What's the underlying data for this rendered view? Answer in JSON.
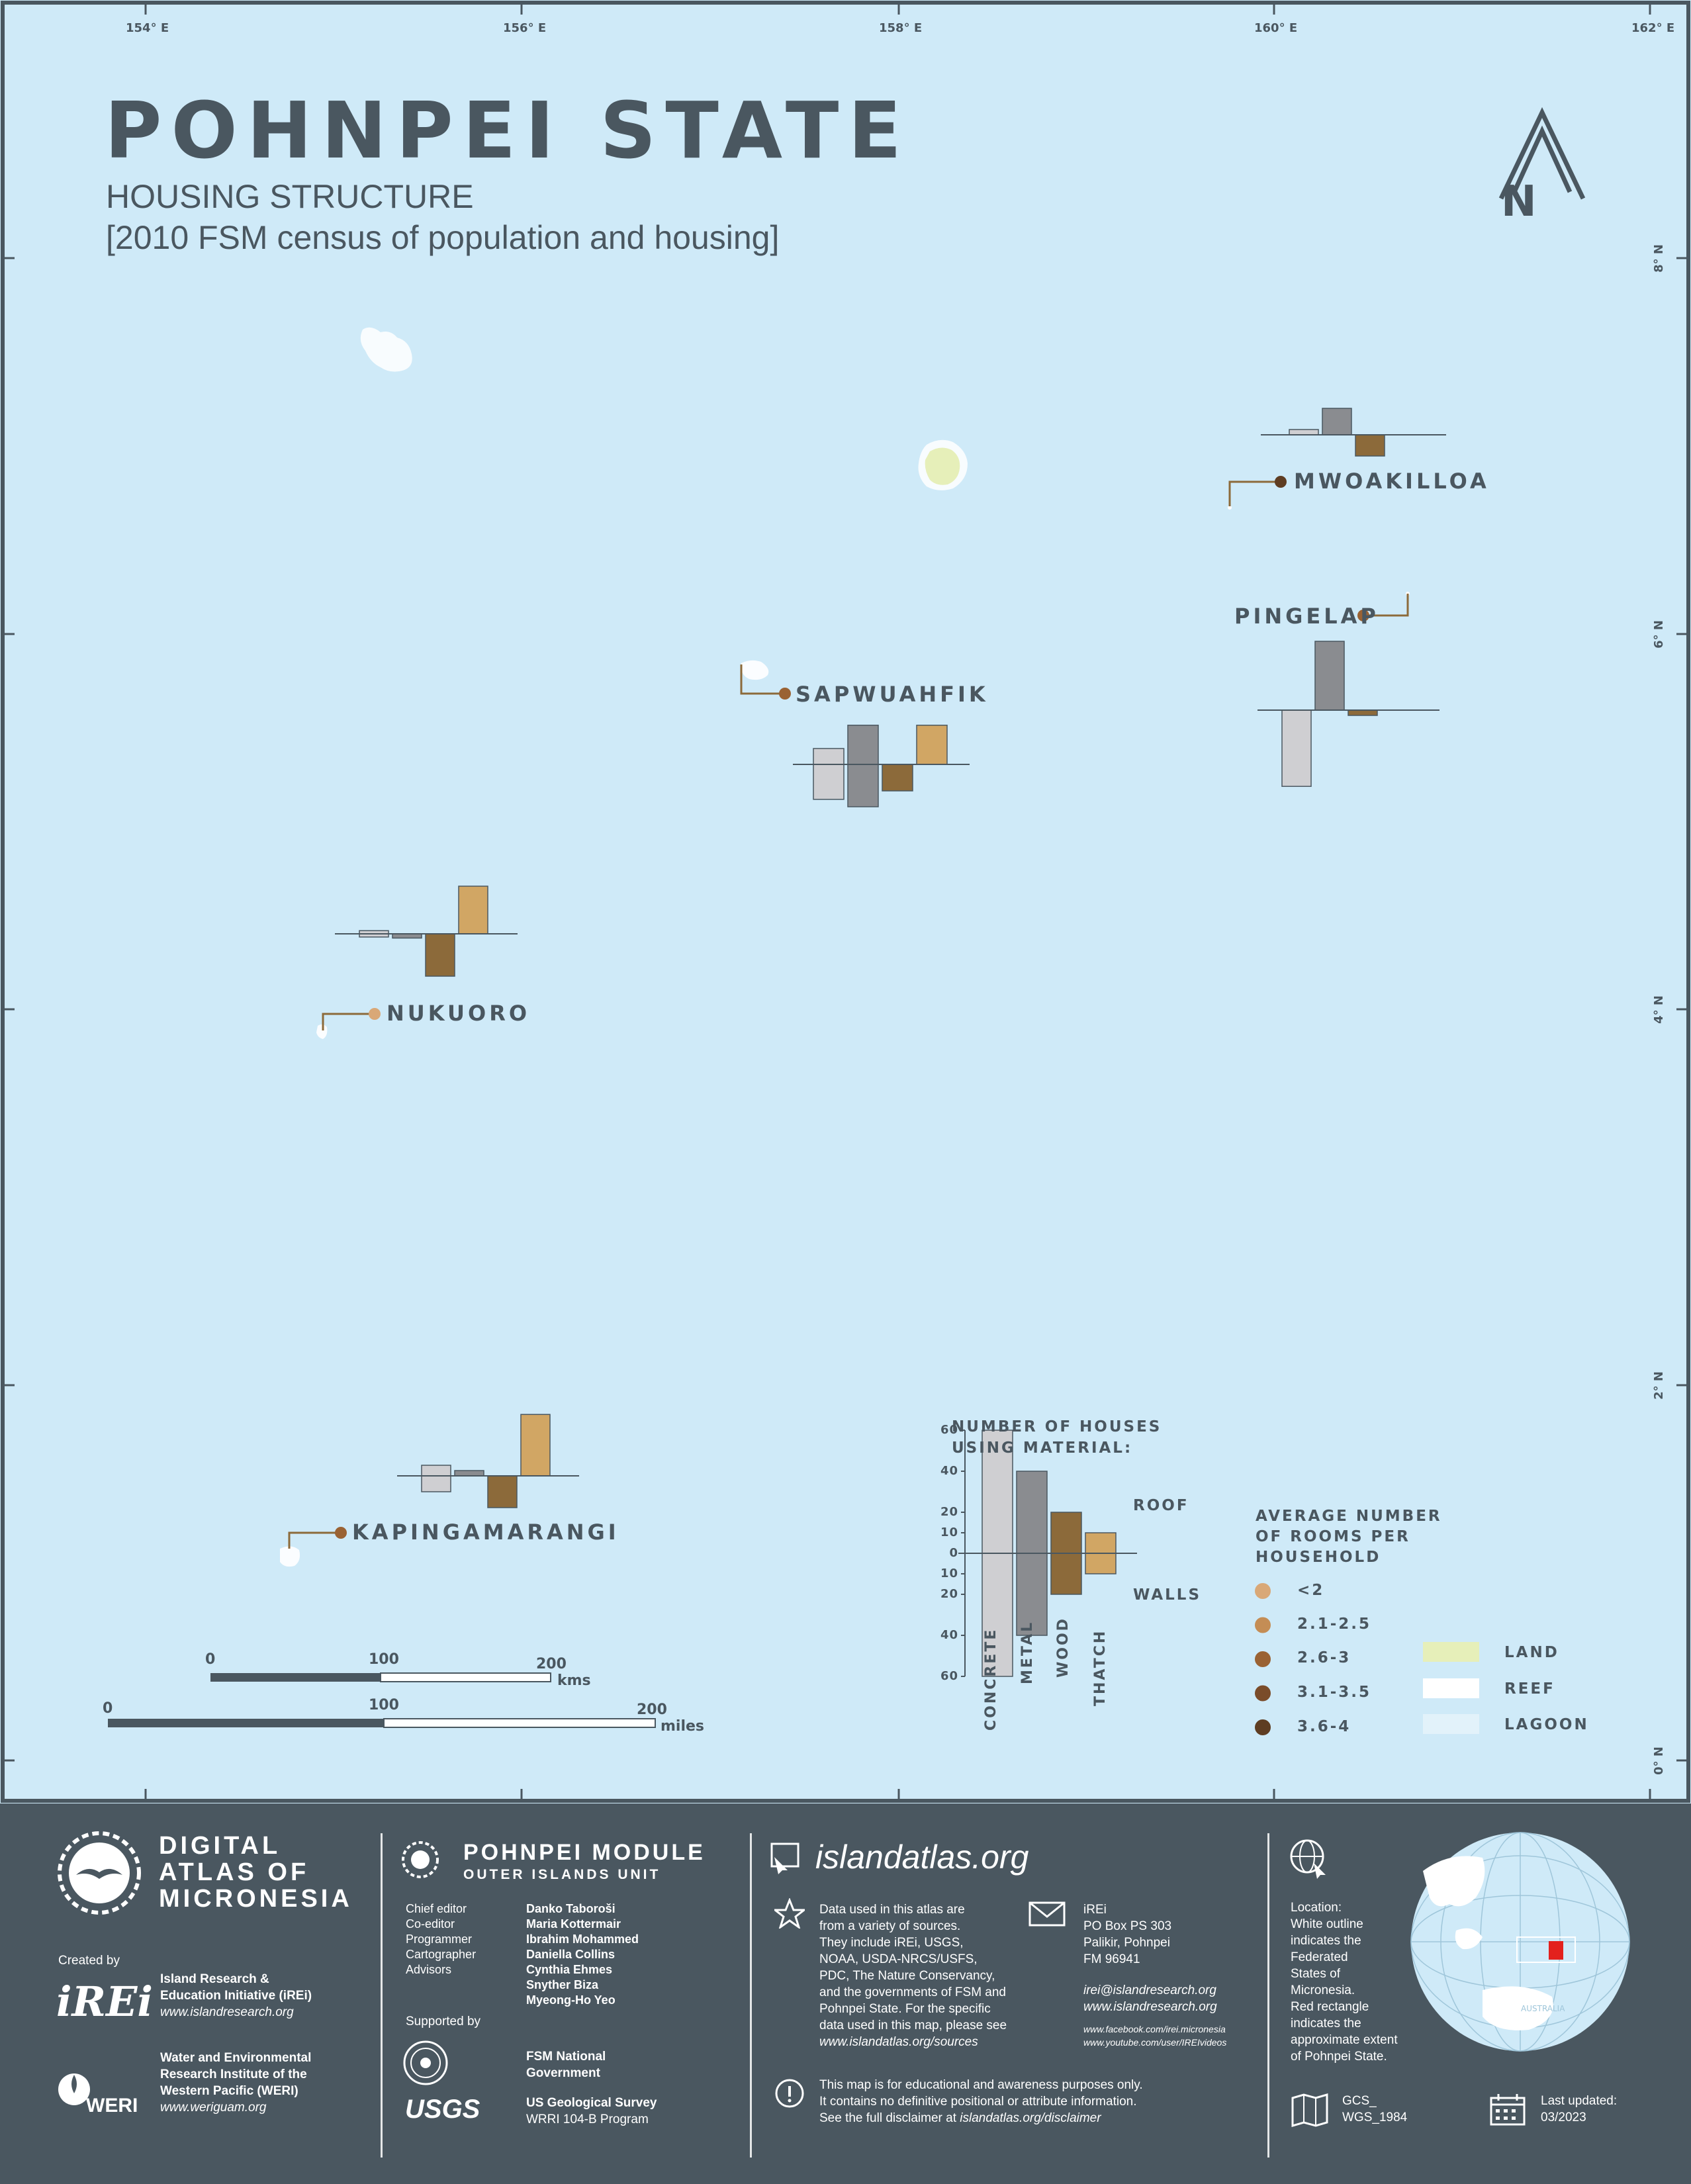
{
  "title": "POHNPEI STATE",
  "subtitle": "HOUSING STRUCTURE",
  "subtitle2": "[2010 FSM census of population and housing]",
  "north_label": "N",
  "longitudes": [
    "154° E",
    "156° E",
    "158° E",
    "160° E",
    "162° E"
  ],
  "latitudes": [
    "8° N",
    "6° N",
    "4° N",
    "2° N",
    "0° N"
  ],
  "islands": [
    {
      "name": "MWOAKILLOA",
      "rooms_class": "3.6-4",
      "dot_color": "#5e3d22"
    },
    {
      "name": "PINGELAP",
      "rooms_class": "2.6-3",
      "dot_color": "#9a6233"
    },
    {
      "name": "SAPWUAHFIK",
      "rooms_class": "2.6-3",
      "dot_color": "#9a6233"
    },
    {
      "name": "NUKUORO",
      "rooms_class": "<2",
      "dot_color": "#d9a877"
    },
    {
      "name": "KAPINGAMARANGI",
      "rooms_class": "2.6-3",
      "dot_color": "#9a6233"
    }
  ],
  "chart_data": {
    "type": "bar",
    "title": "NUMBER OF HOUSES USING MATERIAL:",
    "categories": [
      "CONCRETE",
      "METAL",
      "WOOD",
      "THATCH"
    ],
    "ylabel_top": "ROOF",
    "ylabel_bottom": "WALLS",
    "ylim": [
      -60,
      60
    ],
    "legend_example": {
      "roof": [
        60,
        40,
        20,
        10
      ],
      "walls": [
        60,
        40,
        20,
        10
      ]
    },
    "series": [
      {
        "name": "MWOAKILLOA",
        "roof": [
          5,
          25,
          0,
          0
        ],
        "walls": [
          0,
          0,
          20,
          0
        ]
      },
      {
        "name": "PINGELAP",
        "roof": [
          0,
          65,
          0,
          0
        ],
        "walls": [
          72,
          0,
          5,
          0
        ]
      },
      {
        "name": "SAPWUAHFIK",
        "roof": [
          15,
          37,
          0,
          37
        ],
        "walls": [
          33,
          40,
          25,
          0
        ]
      },
      {
        "name": "NUKUORO",
        "roof": [
          3,
          0,
          0,
          45
        ],
        "walls": [
          3,
          4,
          40,
          0
        ]
      },
      {
        "name": "KAPINGAMARANGI",
        "roof": [
          10,
          5,
          0,
          58
        ],
        "walls": [
          15,
          0,
          30,
          0
        ]
      }
    ]
  },
  "legend": {
    "houses_title_1": "NUMBER OF HOUSES",
    "houses_title_2": "USING MATERIAL:",
    "roof": "ROOF",
    "walls": "WALLS",
    "ticks": [
      "60",
      "40",
      "20",
      "10",
      "0",
      "10",
      "20",
      "40",
      "60"
    ],
    "rooms_title": [
      "AVERAGE NUMBER",
      "OF ROOMS PER",
      "HOUSEHOLD"
    ],
    "rooms_classes": [
      {
        "label": "<2",
        "color": "#d9a877"
      },
      {
        "label": "2.1-2.5",
        "color": "#c48d55"
      },
      {
        "label": "2.6-3",
        "color": "#9a6233"
      },
      {
        "label": "3.1-3.5",
        "color": "#7a4c2a"
      },
      {
        "label": "3.6-4",
        "color": "#5e3d22"
      }
    ],
    "types": [
      {
        "label": "LAND",
        "color": "#e6efb9"
      },
      {
        "label": "REEF",
        "color": "#ffffff"
      },
      {
        "label": "LAGOON",
        "color": "#e2f2fa"
      }
    ],
    "material_colors": {
      "concrete": "#cfcfd2",
      "metal": "#8a8c90",
      "wood": "#8c6a3a",
      "thatch": "#d1a664"
    }
  },
  "scale": {
    "kms": [
      "0",
      "100",
      "200"
    ],
    "kms_unit": "kms",
    "miles": [
      "0",
      "100",
      "200"
    ],
    "miles_unit": "miles"
  },
  "footer": {
    "atlas": [
      "DIGITAL",
      "ATLAS OF",
      "MICRONESIA"
    ],
    "created_by": "Created by",
    "irei_logo": "iREi",
    "irei_name": [
      "Island Research &",
      "Education Initiative (iREi)"
    ],
    "irei_url": "www.islandresearch.org",
    "weri_logo": "WERI",
    "weri_name": [
      "Water and Environmental",
      "Research Institute of the",
      "Western Pacific (WERI)"
    ],
    "weri_url": "www.weriguam.org",
    "module_title": "POHNPEI MODULE",
    "module_sub": "OUTER ISLANDS UNIT",
    "roles": [
      "Chief editor",
      "Co-editor",
      "Programmer",
      "Cartographer",
      "Advisors"
    ],
    "people": [
      "Danko Taboroši",
      "Maria Kottermair",
      "Ibrahim Mohammed",
      "Daniella Collins",
      "Cynthia Ehmes",
      "Snyther Biza",
      "Myeong-Ho Yeo"
    ],
    "supported_by": "Supported by",
    "fsm": [
      "FSM National",
      "Government"
    ],
    "usgs_logo": "USGS",
    "usgs": [
      "US Geological Survey",
      "WRRI 104-B Program"
    ],
    "site": "islandatlas.org",
    "sources": [
      "Data used in this atlas are",
      "from a variety of sources.",
      "They include iREi, USGS,",
      "NOAA, USDA-NRCS/USFS,",
      "PDC, The Nature Conservancy,",
      "and the governments of FSM and",
      "Pohnpei State. For the specific",
      "data used in this map, please see"
    ],
    "sources_url": "www.islandatlas.org/sources",
    "contact": [
      "iREi",
      "PO Box PS 303",
      "Palikir, Pohnpei",
      "FM 96941"
    ],
    "contact_email": "irei@islandresearch.org",
    "contact_url": "www.islandresearch.org",
    "contact_fb": "www.facebook.com/irei.micronesia",
    "contact_yt": "www.youtube.com/user/IREIvideos",
    "disclaimer": [
      "This map is for educational and awareness purposes only.",
      "It contains no definitive positional or attribute information."
    ],
    "disclaimer_prefix": "See the full disclaimer at ",
    "disclaimer_url": "islandatlas.org/disclaimer",
    "location": [
      "Location:",
      "White outline",
      "indicates the",
      "Federated",
      "States of",
      "Micronesia.",
      "Red rectangle",
      "indicates the",
      "approximate extent",
      "of Pohnpei State."
    ],
    "gcs": [
      "GCS_",
      "WGS_1984"
    ],
    "updated": [
      "Last updated:",
      "03/2023"
    ],
    "globe_label": "AUSTRALIA"
  }
}
